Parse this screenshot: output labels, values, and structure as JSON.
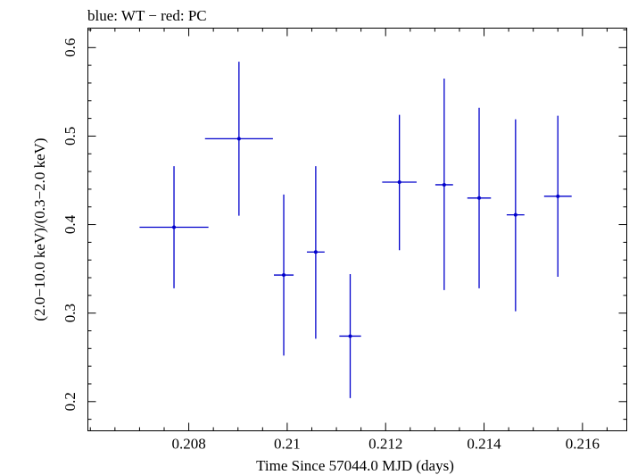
{
  "chart_data": {
    "type": "scatter",
    "title": "blue: WT − red: PC",
    "xlabel": "Time Since 57044.0 MJD (days)",
    "ylabel": "(2.0−10.0 keV)/(0.3−2.0 keV)",
    "xlim": [
      0.20595,
      0.2169
    ],
    "ylim": [
      0.167,
      0.622
    ],
    "xticks": [
      0.208,
      0.21,
      0.212,
      0.214,
      0.216
    ],
    "xtick_labels": [
      "0.208",
      "0.21",
      "0.212",
      "0.214",
      "0.216"
    ],
    "yticks": [
      0.2,
      0.3,
      0.4,
      0.5,
      0.6
    ],
    "ytick_labels": [
      "0.2",
      "0.3",
      "0.4",
      "0.5",
      "0.6"
    ],
    "grid": false,
    "series": [
      {
        "color": "#0000cc",
        "points": [
          {
            "x": 0.2077,
            "y": 0.397,
            "xerr": 0.0007,
            "ylo": 0.328,
            "yhi": 0.466
          },
          {
            "x": 0.20902,
            "y": 0.497,
            "xerr": 0.00069,
            "ylo": 0.41,
            "yhi": 0.584
          },
          {
            "x": 0.20993,
            "y": 0.343,
            "xerr": 0.0002,
            "ylo": 0.252,
            "yhi": 0.434
          },
          {
            "x": 0.21058,
            "y": 0.369,
            "xerr": 0.00018,
            "ylo": 0.271,
            "yhi": 0.466
          },
          {
            "x": 0.21128,
            "y": 0.274,
            "xerr": 0.00022,
            "ylo": 0.204,
            "yhi": 0.344
          },
          {
            "x": 0.21228,
            "y": 0.448,
            "xerr": 0.00035,
            "ylo": 0.371,
            "yhi": 0.524
          },
          {
            "x": 0.21319,
            "y": 0.445,
            "xerr": 0.00018,
            "ylo": 0.326,
            "yhi": 0.565
          },
          {
            "x": 0.2139,
            "y": 0.43,
            "xerr": 0.00024,
            "ylo": 0.328,
            "yhi": 0.532
          },
          {
            "x": 0.21464,
            "y": 0.411,
            "xerr": 0.00018,
            "ylo": 0.302,
            "yhi": 0.519
          },
          {
            "x": 0.2155,
            "y": 0.432,
            "xerr": 0.00028,
            "ylo": 0.341,
            "yhi": 0.523
          }
        ]
      }
    ]
  }
}
